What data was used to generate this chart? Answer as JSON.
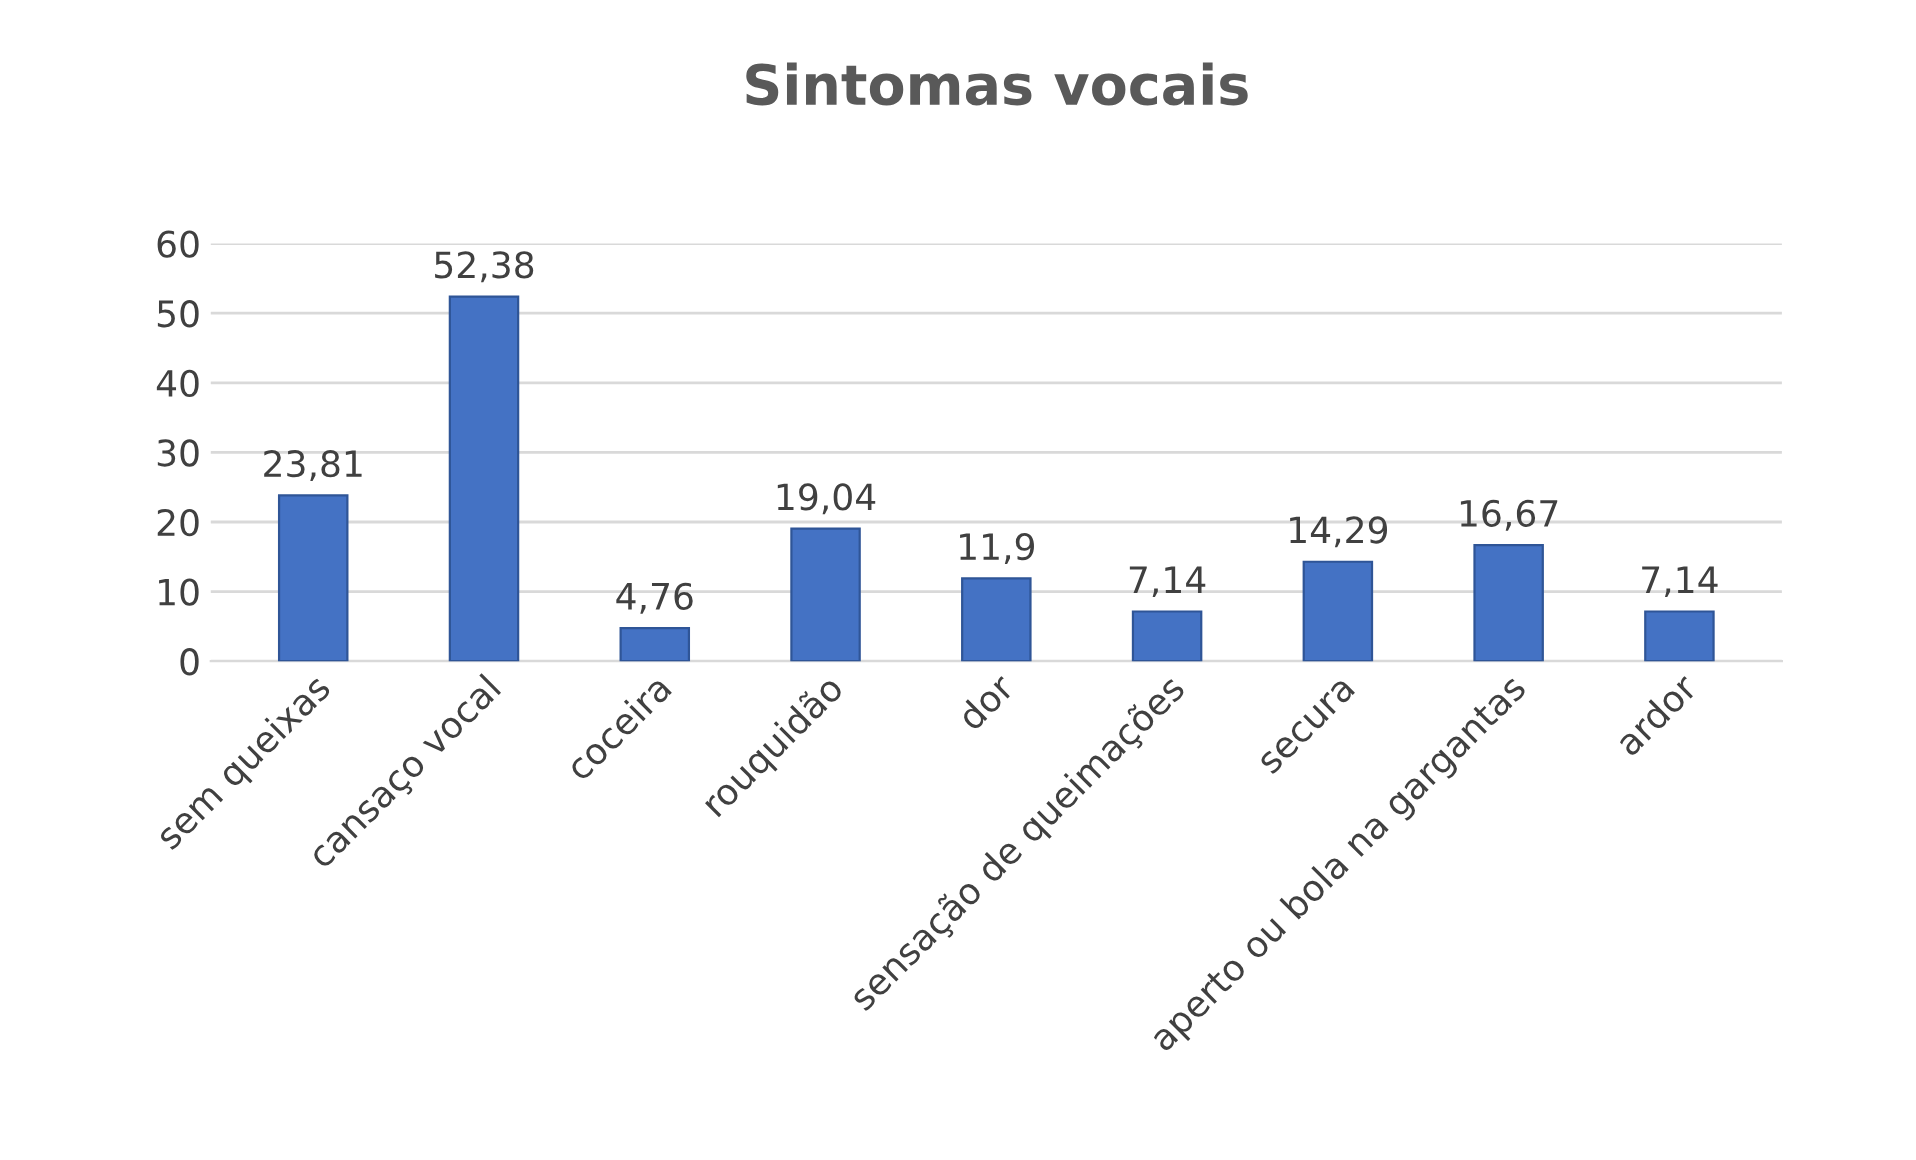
{
  "chart_data": {
    "type": "bar",
    "title": "Sintomas vocais",
    "categories": [
      "sem queixas",
      "cansaço vocal",
      "coceira",
      "rouquidão",
      "dor",
      "sensação de queimações",
      "secura",
      "aperto ou bola na gargantas",
      "ardor"
    ],
    "values": [
      23.81,
      52.38,
      4.76,
      19.04,
      11.9,
      7.14,
      14.29,
      16.67,
      7.14
    ],
    "value_labels": [
      "23,81",
      "52,38",
      "4,76",
      "19,04",
      "11,9",
      "7,14",
      "14,29",
      "16,67",
      "7,14"
    ],
    "color": "#4472c4",
    "ylim": [
      0,
      60
    ],
    "yticks": [
      0,
      10,
      20,
      30,
      40,
      50,
      60
    ],
    "grid": "y"
  }
}
